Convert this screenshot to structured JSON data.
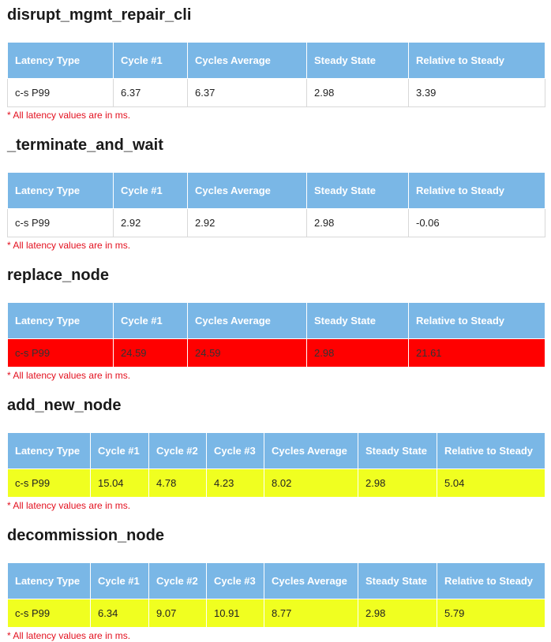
{
  "note_text": "* All latency values are in ms.",
  "colors": {
    "header_bg": "#7ab7e6",
    "red": "#ff0000",
    "yellow": "#f0ff20",
    "note": "#e3101f"
  },
  "sections": [
    {
      "title": "disrupt_mgmt_repair_cli",
      "status": "white",
      "columns": [
        "Latency Type",
        "Cycle #1",
        "Cycles Average",
        "Steady State",
        "Relative to Steady"
      ],
      "rows": [
        [
          "c-s P99",
          "6.37",
          "6.37",
          "2.98",
          "3.39"
        ]
      ]
    },
    {
      "title": "_terminate_and_wait",
      "status": "white",
      "columns": [
        "Latency Type",
        "Cycle #1",
        "Cycles Average",
        "Steady State",
        "Relative to Steady"
      ],
      "rows": [
        [
          "c-s P99",
          "2.92",
          "2.92",
          "2.98",
          "-0.06"
        ]
      ]
    },
    {
      "title": "replace_node",
      "status": "red",
      "columns": [
        "Latency Type",
        "Cycle #1",
        "Cycles Average",
        "Steady State",
        "Relative to Steady"
      ],
      "rows": [
        [
          "c-s P99",
          "24.59",
          "24.59",
          "2.98",
          "21.61"
        ]
      ]
    },
    {
      "title": "add_new_node",
      "status": "yellow",
      "columns": [
        "Latency Type",
        "Cycle #1",
        "Cycle #2",
        "Cycle #3",
        "Cycles Average",
        "Steady State",
        "Relative to Steady"
      ],
      "rows": [
        [
          "c-s P99",
          "15.04",
          "4.78",
          "4.23",
          "8.02",
          "2.98",
          "5.04"
        ]
      ]
    },
    {
      "title": "decommission_node",
      "status": "yellow",
      "columns": [
        "Latency Type",
        "Cycle #1",
        "Cycle #2",
        "Cycle #3",
        "Cycles Average",
        "Steady State",
        "Relative to Steady"
      ],
      "rows": [
        [
          "c-s P99",
          "6.34",
          "9.07",
          "10.91",
          "8.77",
          "2.98",
          "5.79"
        ]
      ]
    }
  ]
}
